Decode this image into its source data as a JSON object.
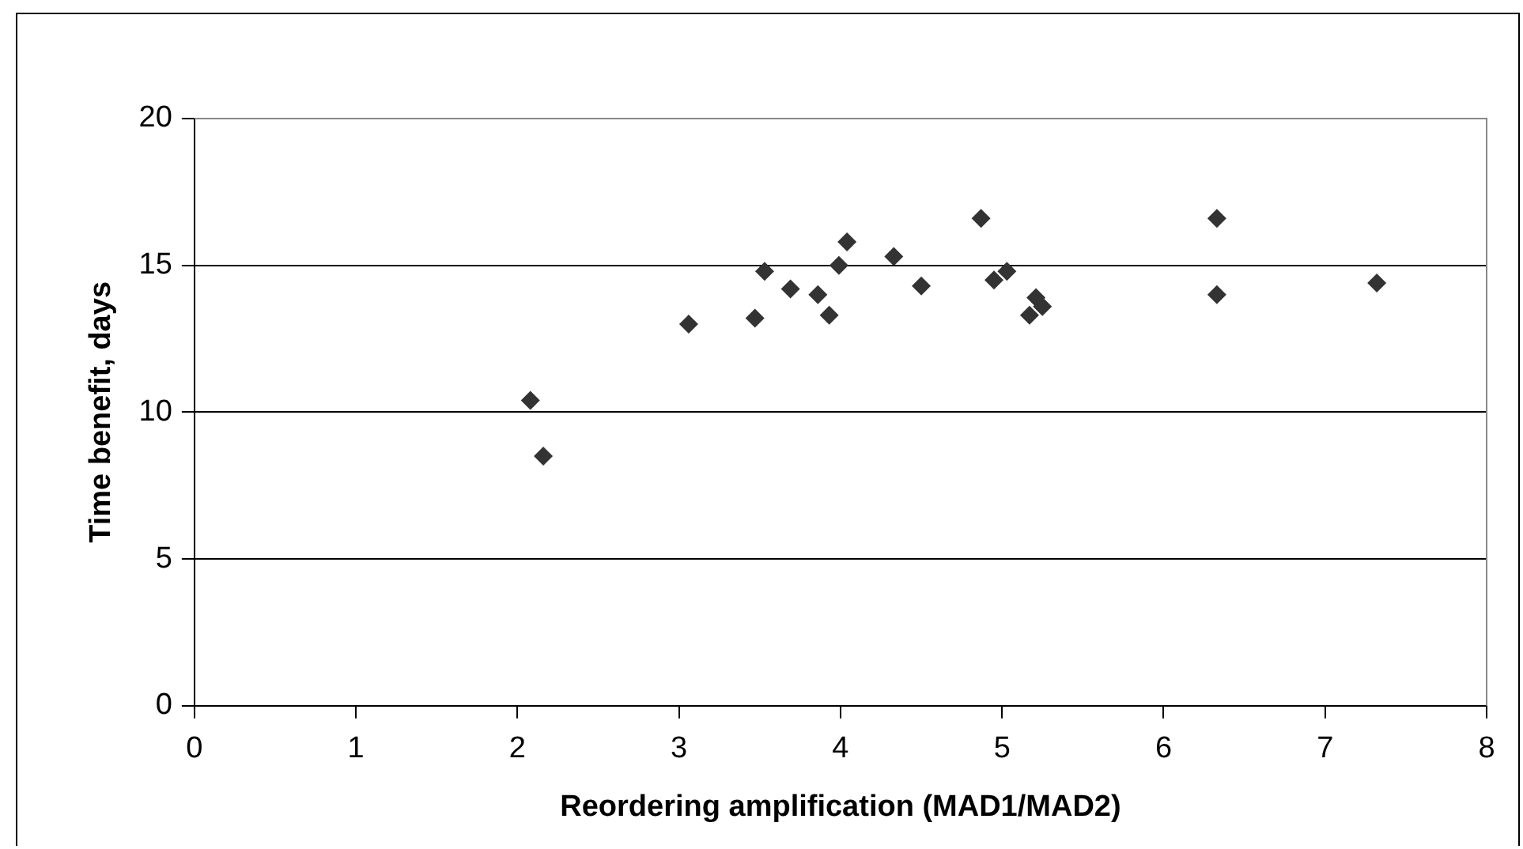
{
  "chart_data": {
    "type": "scatter",
    "xlabel": "Reordering amplification (MAD1/MAD2)",
    "ylabel": "Time benefit, days",
    "series": [
      {
        "color": "#333333",
        "x": [
          2.08,
          2.16,
          3.06,
          3.47,
          3.53,
          3.69,
          3.86,
          3.93,
          3.99,
          4.04,
          4.33,
          4.5,
          4.87,
          4.95,
          5.03,
          5.17,
          5.21,
          5.25,
          6.33,
          6.33,
          7.32
        ],
        "values": [
          10.4,
          8.5,
          13.0,
          13.2,
          14.8,
          14.2,
          14.0,
          13.3,
          15.0,
          15.8,
          15.3,
          14.3,
          16.6,
          14.5,
          14.8,
          13.3,
          13.9,
          13.6,
          16.6,
          14.0,
          14.4
        ]
      }
    ],
    "xlim": [
      0,
      8
    ],
    "xticks": [
      0,
      1,
      2,
      3,
      4,
      5,
      6,
      7,
      8
    ],
    "ylim": [
      0,
      20
    ],
    "yticks": [
      0,
      5,
      10,
      15,
      20
    ],
    "grid": "y",
    "legend": false,
    "marker": "diamond"
  }
}
